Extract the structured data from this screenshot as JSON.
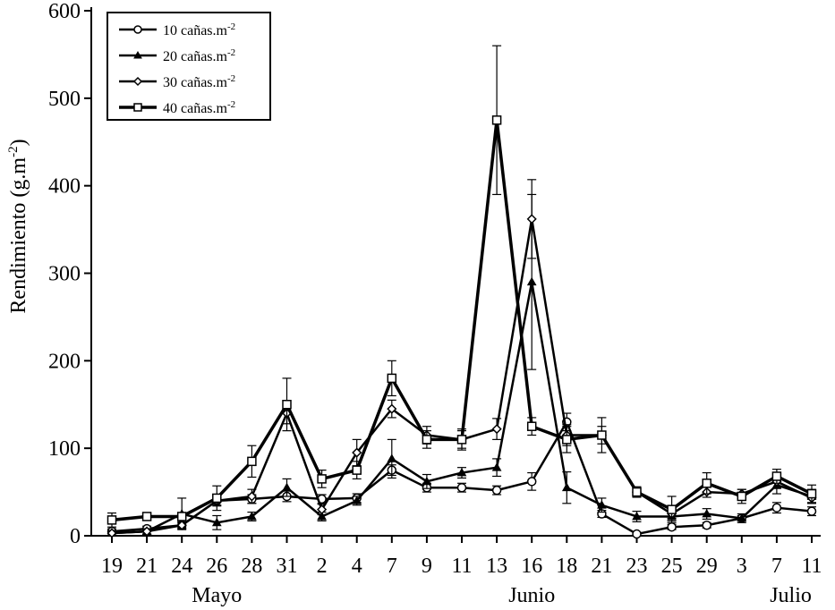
{
  "chart_data": {
    "type": "line",
    "title": "",
    "xlabel": "",
    "ylabel": "Rendimiento (g.m",
    "ylabel_sup": "-2",
    "ylabel_close": ")",
    "ylim": [
      0,
      600
    ],
    "yticks": [
      0,
      100,
      200,
      300,
      400,
      500,
      600
    ],
    "categories": [
      "19",
      "21",
      "24",
      "26",
      "28",
      "31",
      "2",
      "4",
      "7",
      "9",
      "11",
      "13",
      "16",
      "18",
      "21",
      "23",
      "25",
      "29",
      "3",
      "7",
      "11"
    ],
    "months": [
      {
        "label": "Mayo",
        "index": 3
      },
      {
        "label": "Junio",
        "index": 12
      },
      {
        "label": "Julio",
        "index": 19.4
      }
    ],
    "legend_position": "top-left",
    "grid": false,
    "series": [
      {
        "name": "10 cañas.m",
        "name_sup": "-2",
        "marker": "circle",
        "values": [
          5,
          8,
          12,
          40,
          42,
          45,
          42,
          43,
          75,
          55,
          55,
          52,
          62,
          130,
          25,
          2,
          10,
          12,
          20,
          32,
          28
        ],
        "errors": [
          3,
          3,
          3,
          5,
          5,
          6,
          5,
          5,
          6,
          5,
          5,
          5,
          10,
          10,
          4,
          2,
          3,
          3,
          3,
          6,
          5
        ]
      },
      {
        "name": "20 cañas.m",
        "name_sup": "-2",
        "marker": "triangle",
        "values": [
          3,
          5,
          25,
          15,
          22,
          55,
          22,
          40,
          88,
          62,
          72,
          78,
          290,
          55,
          35,
          22,
          22,
          25,
          20,
          58,
          45
        ],
        "errors": [
          3,
          3,
          18,
          8,
          5,
          10,
          5,
          5,
          22,
          8,
          6,
          10,
          100,
          18,
          8,
          6,
          5,
          6,
          5,
          10,
          8
        ]
      },
      {
        "name": "30 cañas.m",
        "name_sup": "-2",
        "marker": "diamond",
        "values": [
          3,
          5,
          12,
          40,
          45,
          140,
          30,
          95,
          145,
          115,
          110,
          122,
          362,
          115,
          115,
          50,
          25,
          50,
          48,
          62,
          43
        ],
        "errors": [
          3,
          3,
          4,
          6,
          8,
          12,
          6,
          15,
          10,
          10,
          10,
          12,
          45,
          12,
          10,
          6,
          5,
          6,
          5,
          8,
          6
        ]
      },
      {
        "name": "40 cañas.m",
        "name_sup": "-2",
        "marker": "square",
        "values": [
          18,
          22,
          22,
          43,
          85,
          150,
          65,
          75,
          180,
          110,
          110,
          475,
          125,
          110,
          115,
          50,
          30,
          60,
          45,
          68,
          48
        ],
        "errors": [
          8,
          4,
          4,
          14,
          18,
          30,
          10,
          10,
          20,
          10,
          12,
          85,
          10,
          15,
          20,
          5,
          15,
          12,
          8,
          8,
          10
        ]
      }
    ]
  }
}
